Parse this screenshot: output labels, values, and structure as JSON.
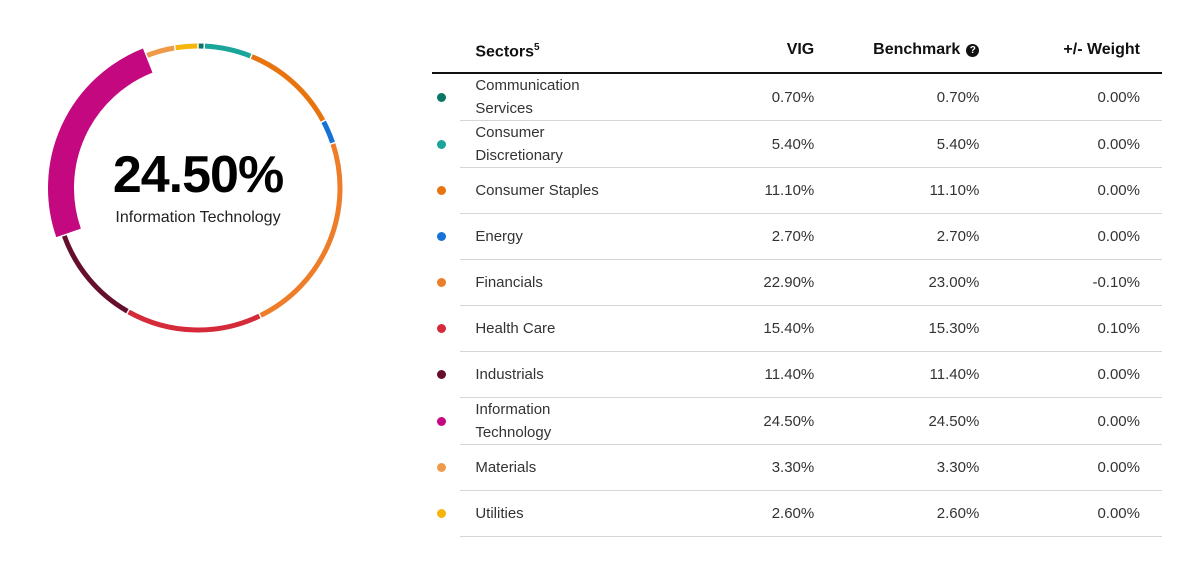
{
  "donut": {
    "center_value": "24.50%",
    "center_label": "Information Technology"
  },
  "table": {
    "headers": {
      "sector": "Sectors",
      "sector_footnote": "5",
      "vig": "VIG",
      "benchmark": "Benchmark",
      "weight": "+/- Weight"
    },
    "rows": [
      {
        "name": "Communication Services",
        "vig": "0.70%",
        "benchmark": "0.70%",
        "diff": "0.00%",
        "color": "#0b7566"
      },
      {
        "name": "Consumer Discretionary",
        "vig": "5.40%",
        "benchmark": "5.40%",
        "diff": "0.00%",
        "color": "#1aa59a"
      },
      {
        "name": "Consumer Staples",
        "vig": "11.10%",
        "benchmark": "11.10%",
        "diff": "0.00%",
        "color": "#e8740f"
      },
      {
        "name": "Energy",
        "vig": "2.70%",
        "benchmark": "2.70%",
        "diff": "0.00%",
        "color": "#1672d6"
      },
      {
        "name": "Financials",
        "vig": "22.90%",
        "benchmark": "23.00%",
        "diff": "-0.10%",
        "color": "#ee7d2a"
      },
      {
        "name": "Health Care",
        "vig": "15.40%",
        "benchmark": "15.30%",
        "diff": "0.10%",
        "color": "#d42a3a"
      },
      {
        "name": "Industrials",
        "vig": "11.40%",
        "benchmark": "11.40%",
        "diff": "0.00%",
        "color": "#660e2e"
      },
      {
        "name": "Information Technology",
        "vig": "24.50%",
        "benchmark": "24.50%",
        "diff": "0.00%",
        "color": "#c4087f"
      },
      {
        "name": "Materials",
        "vig": "3.30%",
        "benchmark": "3.30%",
        "diff": "0.00%",
        "color": "#ee9a4a"
      },
      {
        "name": "Utilities",
        "vig": "2.60%",
        "benchmark": "2.60%",
        "diff": "0.00%",
        "color": "#f5b50c"
      }
    ]
  },
  "chart_data": {
    "type": "pie",
    "variant": "donut",
    "highlighted": "Information Technology",
    "title": "",
    "categories": [
      "Communication Services",
      "Consumer Discretionary",
      "Consumer Staples",
      "Energy",
      "Financials",
      "Health Care",
      "Industrials",
      "Information Technology",
      "Materials",
      "Utilities"
    ],
    "series": [
      {
        "name": "VIG",
        "values": [
          0.7,
          5.4,
          11.1,
          2.7,
          22.9,
          15.4,
          11.4,
          24.5,
          3.3,
          2.6
        ]
      },
      {
        "name": "Benchmark",
        "values": [
          0.7,
          5.4,
          11.1,
          2.7,
          23.0,
          15.3,
          11.4,
          24.5,
          3.3,
          2.6
        ]
      }
    ],
    "weight_diff": [
      0.0,
      0.0,
      0.0,
      0.0,
      -0.1,
      0.1,
      0.0,
      0.0,
      0.0,
      0.0
    ],
    "colors": [
      "#0b7566",
      "#1aa59a",
      "#e8740f",
      "#1672d6",
      "#ee7d2a",
      "#d42a3a",
      "#660e2e",
      "#c4087f",
      "#ee9a4a",
      "#f5b50c"
    ]
  }
}
